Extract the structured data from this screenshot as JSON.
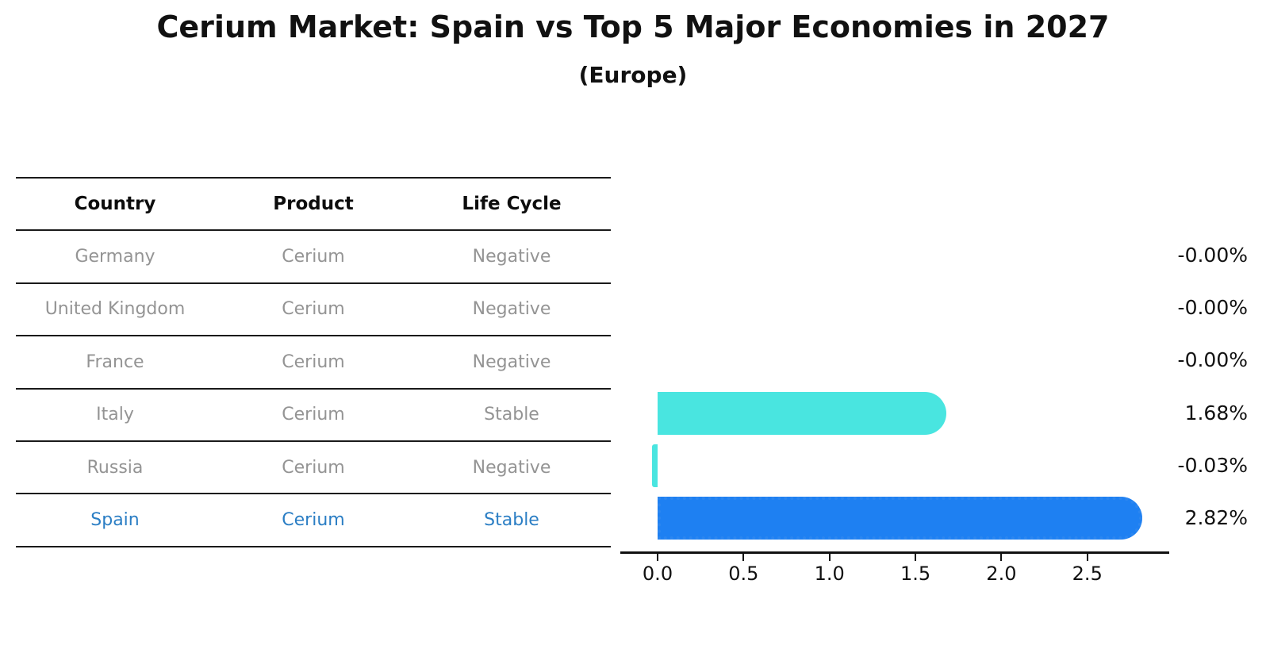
{
  "figure": {
    "title": "Cerium Market: Spain vs Top 5 Major Economies in 2027",
    "subtitle": "(Europe)"
  },
  "table": {
    "columns": [
      "Country",
      "Product",
      "Life Cycle"
    ],
    "rows": [
      {
        "country": "Germany",
        "product": "Cerium",
        "life_cycle": "Negative",
        "highlight": false
      },
      {
        "country": "United Kingdom",
        "product": "Cerium",
        "life_cycle": "Negative",
        "highlight": false
      },
      {
        "country": "France",
        "product": "Cerium",
        "life_cycle": "Negative",
        "highlight": false
      },
      {
        "country": "Italy",
        "product": "Cerium",
        "life_cycle": "Stable",
        "highlight": false
      },
      {
        "country": "Russia",
        "product": "Cerium",
        "life_cycle": "Negative",
        "highlight": false
      },
      {
        "country": "Spain",
        "product": "Cerium",
        "life_cycle": "Stable",
        "highlight": true
      }
    ]
  },
  "chart_data": {
    "type": "bar",
    "orientation": "horizontal",
    "title": "Cerium Market: Spain vs Top 5 Major Economies in 2027",
    "subtitle": "(Europe)",
    "categories": [
      "Germany",
      "United Kingdom",
      "France",
      "Italy",
      "Russia",
      "Spain"
    ],
    "values": [
      -0.0,
      -0.0,
      -0.0,
      1.68,
      -0.03,
      2.82
    ],
    "value_labels": [
      "-0.00%",
      "-0.00%",
      "-0.00%",
      "1.68%",
      "-0.03%",
      "2.82%"
    ],
    "xlabel": "",
    "ylabel": "",
    "xticks": [
      0.0,
      0.5,
      1.0,
      1.5,
      2.0,
      2.5
    ],
    "xtick_labels": [
      "0.0",
      "0.5",
      "1.0",
      "1.5",
      "2.0",
      "2.5"
    ],
    "xlim": [
      -0.22,
      2.97
    ],
    "grid": false,
    "legend": false,
    "highlight_category": "Spain",
    "colors": {
      "bar_default": "#49e5e0",
      "bar_highlight": "#1e80f2",
      "bar_highlight_edge": "#2b86f0",
      "highlight_text": "#2b7ec4",
      "table_text": "#949494",
      "text": "#111111"
    }
  }
}
